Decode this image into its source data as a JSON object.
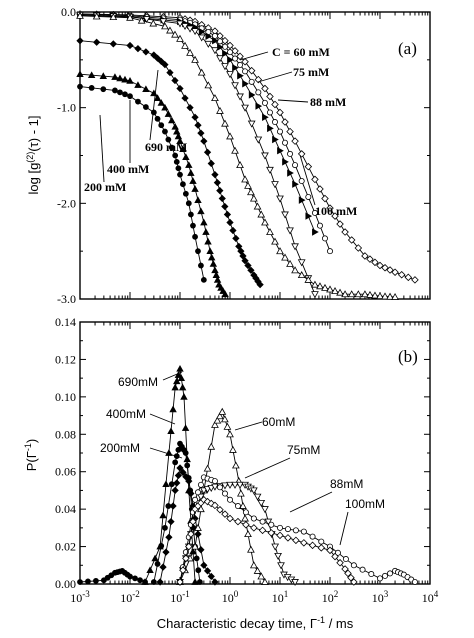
{
  "chart_data": [
    {
      "panel": "(a)",
      "type": "scatter",
      "xlabel": "",
      "ylabel": "log [g(2)(τ) - 1]",
      "ylabel_parts": {
        "pre": "log [g",
        "sup": "(2)",
        "post": "(τ) - 1]"
      },
      "x_scale": "log",
      "xlim": [
        0.001,
        10000
      ],
      "ylim": [
        -3.0,
        0.0
      ],
      "y_ticks": [
        "0.0",
        "-1.0",
        "-2.0",
        "-3.0"
      ],
      "y_tick_values": [
        0.0,
        -1.0,
        -2.0,
        -3.0
      ],
      "series": [
        {
          "name": "C = 60 mM",
          "marker": "open-diamond",
          "x": [
            0.001,
            0.01,
            0.1,
            0.2,
            0.5,
            1,
            2,
            5,
            10,
            20,
            50,
            100,
            200,
            500,
            1000,
            2000,
            5000
          ],
          "y": [
            -0.02,
            -0.03,
            -0.06,
            -0.1,
            -0.2,
            -0.35,
            -0.52,
            -0.8,
            -1.05,
            -1.35,
            -1.75,
            -2.05,
            -2.3,
            -2.55,
            -2.65,
            -2.72,
            -2.8
          ]
        },
        {
          "name": "75 mM",
          "marker": "open-circle",
          "x": [
            0.001,
            0.01,
            0.1,
            0.2,
            0.5,
            1,
            2,
            5,
            10,
            20,
            50,
            100
          ],
          "y": [
            -0.02,
            -0.04,
            -0.08,
            -0.13,
            -0.25,
            -0.42,
            -0.62,
            -0.95,
            -1.25,
            -1.6,
            -2.1,
            -2.5
          ]
        },
        {
          "name": "88 mM",
          "marker": "filled-triangle-right",
          "x": [
            0.001,
            0.01,
            0.1,
            0.2,
            0.5,
            1,
            2,
            5,
            10,
            20,
            50
          ],
          "y": [
            -0.03,
            -0.05,
            -0.1,
            -0.16,
            -0.3,
            -0.5,
            -0.75,
            -1.1,
            -1.45,
            -1.8,
            -2.3
          ]
        },
        {
          "name": "100 mM",
          "marker": "open-triangle-down",
          "x": [
            0.001,
            0.01,
            0.1,
            0.2,
            0.5,
            1,
            2,
            5,
            10,
            20,
            50
          ],
          "y": [
            -0.03,
            -0.05,
            -0.12,
            -0.2,
            -0.4,
            -0.65,
            -1.0,
            -1.5,
            -1.95,
            -2.45,
            -2.95
          ]
        },
        {
          "name": "690 mM",
          "marker": "open-triangle-up",
          "x": [
            0.001,
            0.01,
            0.05,
            0.1,
            0.2,
            0.5,
            1,
            2,
            3,
            5,
            10,
            20,
            50,
            100,
            200,
            500,
            1000,
            2000
          ],
          "y": [
            -0.04,
            -0.06,
            -0.15,
            -0.28,
            -0.5,
            -0.9,
            -1.3,
            -1.75,
            -1.95,
            -2.2,
            -2.5,
            -2.7,
            -2.85,
            -2.9,
            -2.95,
            -2.95,
            -2.97,
            -2.98
          ]
        },
        {
          "name": "400 mM",
          "marker": "filled-diamond",
          "x": [
            0.001,
            0.01,
            0.03,
            0.05,
            0.1,
            0.2,
            0.3,
            0.5,
            0.7,
            1,
            1.5,
            2,
            3,
            4
          ],
          "y": [
            -0.3,
            -0.35,
            -0.45,
            -0.55,
            -0.8,
            -1.1,
            -1.35,
            -1.7,
            -1.95,
            -2.2,
            -2.45,
            -2.6,
            -2.75,
            -2.85
          ]
        },
        {
          "name": "200 mM",
          "marker": "filled-triangle-up",
          "x": [
            0.001,
            0.005,
            0.01,
            0.03,
            0.05,
            0.08,
            0.1,
            0.15,
            0.2,
            0.3,
            0.4,
            0.5,
            0.6,
            0.8
          ],
          "y": [
            -0.65,
            -0.68,
            -0.72,
            -0.85,
            -1.0,
            -1.2,
            -1.35,
            -1.6,
            -1.85,
            -2.2,
            -2.5,
            -2.7,
            -2.85,
            -2.95
          ]
        },
        {
          "name": "",
          "marker": "filled-circle",
          "x": [
            0.001,
            0.005,
            0.01,
            0.03,
            0.05,
            0.08,
            0.1,
            0.15,
            0.2,
            0.3
          ],
          "y": [
            -0.78,
            -0.82,
            -0.88,
            -1.05,
            -1.25,
            -1.5,
            -1.7,
            -2.0,
            -2.35,
            -2.8
          ]
        }
      ],
      "annotations": [
        "C = 60 mM",
        "75 mM",
        "88 mM",
        "100 mM",
        "690 mM",
        "400 mM",
        "200 mM"
      ]
    },
    {
      "panel": "(b)",
      "type": "line",
      "xlabel": "Characteristic decay time, Γ-1 / ms",
      "xlabel_parts": {
        "pre": "Characteristic decay time,  Γ",
        "sup": "-1",
        "post": " / ms"
      },
      "ylabel": "P(Γ-1)",
      "ylabel_parts": {
        "pre": "P(Γ",
        "sup": "-1",
        "post": ")"
      },
      "x_scale": "log",
      "xlim": [
        0.001,
        10000
      ],
      "ylim": [
        0.0,
        0.14
      ],
      "x_ticks": [
        {
          "base": "10",
          "exp": "-3"
        },
        {
          "base": "10",
          "exp": "-2"
        },
        {
          "base": "10",
          "exp": "-1"
        },
        {
          "base": "10",
          "exp": "0"
        },
        {
          "base": "10",
          "exp": "1"
        },
        {
          "base": "10",
          "exp": "2"
        },
        {
          "base": "10",
          "exp": "3"
        },
        {
          "base": "10",
          "exp": "4"
        }
      ],
      "y_ticks": [
        "0.00",
        "0.02",
        "0.04",
        "0.06",
        "0.08",
        "0.10",
        "0.12",
        "0.14"
      ],
      "y_tick_values": [
        0.0,
        0.02,
        0.04,
        0.06,
        0.08,
        0.1,
        0.12,
        0.14
      ],
      "series": [
        {
          "name": "690mM",
          "marker": "filled-triangle-up",
          "x": [
            0.02,
            0.04,
            0.06,
            0.08,
            0.1,
            0.12,
            0.15,
            0.2
          ],
          "y": [
            0.0,
            0.02,
            0.07,
            0.105,
            0.115,
            0.1,
            0.05,
            0.0
          ]
        },
        {
          "name": "400mM",
          "marker": "filled-circle",
          "x": [
            0.03,
            0.05,
            0.08,
            0.1,
            0.13,
            0.16,
            0.2,
            0.25
          ],
          "y": [
            0.0,
            0.03,
            0.065,
            0.075,
            0.07,
            0.05,
            0.02,
            0.0
          ]
        },
        {
          "name": "200mM",
          "marker": "filled-diamond",
          "x": [
            0.04,
            0.06,
            0.08,
            0.1,
            0.15,
            0.2,
            0.3,
            0.5
          ],
          "y": [
            0.0,
            0.025,
            0.05,
            0.062,
            0.055,
            0.035,
            0.01,
            0.0
          ]
        },
        {
          "name": "60mM",
          "marker": "open-triangle-up",
          "x": [
            0.1,
            0.2,
            0.3,
            0.5,
            0.7,
            1,
            1.5,
            2,
            3,
            5
          ],
          "y": [
            0.0,
            0.02,
            0.05,
            0.085,
            0.092,
            0.08,
            0.055,
            0.035,
            0.01,
            0.0
          ]
        },
        {
          "name": "75mM",
          "marker": "open-triangle-down",
          "x": [
            0.1,
            0.15,
            0.2,
            0.3,
            0.5,
            1,
            2,
            3,
            5,
            8,
            12,
            20
          ],
          "y": [
            0.0,
            0.02,
            0.04,
            0.05,
            0.052,
            0.053,
            0.053,
            0.05,
            0.04,
            0.02,
            0.005,
            0.0
          ]
        },
        {
          "name": "88mM",
          "marker": "open-circle",
          "x": [
            0.1,
            0.15,
            0.2,
            0.3,
            0.5,
            1,
            3,
            10,
            30,
            100,
            300,
            1000,
            2000,
            3000,
            5000
          ],
          "y": [
            0.0,
            0.025,
            0.045,
            0.057,
            0.055,
            0.045,
            0.035,
            0.03,
            0.028,
            0.02,
            0.01,
            0.003,
            0.007,
            0.005,
            0.0
          ]
        },
        {
          "name": "100mM",
          "marker": "open-diamond",
          "x": [
            0.1,
            0.15,
            0.2,
            0.3,
            0.5,
            1,
            3,
            10,
            30,
            100,
            200,
            300
          ],
          "y": [
            0.0,
            0.02,
            0.04,
            0.045,
            0.042,
            0.035,
            0.03,
            0.026,
            0.022,
            0.018,
            0.008,
            0.0
          ]
        },
        {
          "name": "",
          "marker": "filled-circle",
          "x": [
            0.001,
            0.003,
            0.005,
            0.007,
            0.01,
            0.02
          ],
          "y": [
            0.0,
            0.002,
            0.006,
            0.007,
            0.004,
            0.0
          ]
        }
      ],
      "annotations": [
        "690mM",
        "400mM",
        "200mM",
        "60mM",
        "75mM",
        "88mM",
        "100mM"
      ]
    }
  ]
}
